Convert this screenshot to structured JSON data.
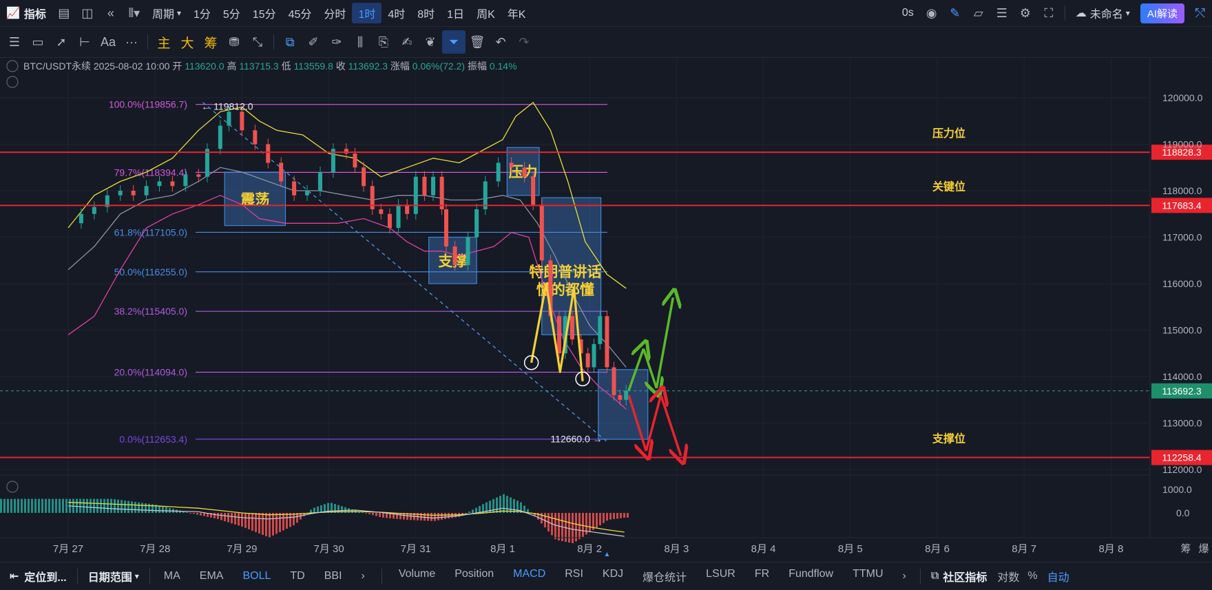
{
  "topbar": {
    "indicator_label": "指标",
    "period_label": "周期",
    "intervals": [
      "1分",
      "5分",
      "15分",
      "45分",
      "分时",
      "1时",
      "4时",
      "8时",
      "1日",
      "周K",
      "年K"
    ],
    "active_interval": "1时",
    "countdown": "0s",
    "layout_name": "未命名",
    "ai_button": "AI解读"
  },
  "toolbar": {
    "main_label": "主",
    "big_label": "大",
    "chip_label": "筹",
    "text_tool": "Aa",
    "more": "···"
  },
  "legend": {
    "symbol": "BTC/USDT永续",
    "datetime": "2025-08-02 10:00",
    "open_label": "开",
    "open": "113620.0",
    "high_label": "高",
    "high": "113715.3",
    "low_label": "低",
    "low": "113559.8",
    "close_label": "收",
    "close": "113692.3",
    "change_label": "涨幅",
    "change": "0.06%(72.2)",
    "amp_label": "振幅",
    "amp": "0.14%"
  },
  "chart_data": {
    "type": "candlestick",
    "x_labels": [
      "7月 27",
      "7月 28",
      "7月 29",
      "7月 30",
      "7月 31",
      "8月 1",
      "8月 2",
      "8月 3",
      "8月 4",
      "8月 5",
      "8月 6",
      "8月 7",
      "8月 8"
    ],
    "y_ticks": [
      120000,
      119000,
      118000,
      117000,
      116000,
      115000,
      114000,
      113000,
      112000
    ],
    "y_range": [
      111800,
      120350
    ],
    "fib_levels": [
      {
        "label": "100.0%(119856.7)",
        "value": 119856.7,
        "color": "#d05ad8"
      },
      {
        "label": "79.7%(118394.4)",
        "value": 118394.4,
        "color": "#d05ad8"
      },
      {
        "label": "61.8%(117105.0)",
        "value": 117105.0,
        "color": "#4c8ce6"
      },
      {
        "label": "50.0%(116255.0)",
        "value": 116255.0,
        "color": "#4c8ce6"
      },
      {
        "label": "38.2%(115405.0)",
        "value": 115405.0,
        "color": "#b05ae0"
      },
      {
        "label": "20.0%(114094.0)",
        "value": 114094.0,
        "color": "#b05ae0"
      },
      {
        "label": "0.0%(112653.4)",
        "value": 112653.4,
        "color": "#7b48e0"
      }
    ],
    "horizontal_lines": [
      {
        "value": 118828.3,
        "label": "118828.3",
        "annotation": "压力位"
      },
      {
        "value": 117683.4,
        "label": "117683.4",
        "annotation": "关键位"
      },
      {
        "value": 112258.4,
        "label": "112258.4",
        "annotation": "支撑位"
      }
    ],
    "current_price": {
      "value": 113692.3,
      "label": "113692.3"
    },
    "high_marker": {
      "text": "← 119812.0",
      "value": 119812.0
    },
    "low_marker": {
      "text": "112660.0 →",
      "value": 112660.0
    },
    "boxes": [
      {
        "label": "震荡",
        "x0": 1.8,
        "x1": 2.5,
        "y0": 118400,
        "y1": 117250
      },
      {
        "label": "支撑",
        "x0": 4.15,
        "x1": 4.7,
        "y0": 117000,
        "y1": 116000
      },
      {
        "label": "压力",
        "x0": 5.05,
        "x1": 5.42,
        "y0": 118930,
        "y1": 117900
      },
      {
        "label": "",
        "x0": 5.45,
        "x1": 6.13,
        "y0": 117850,
        "y1": 114900
      },
      {
        "label": "",
        "x0": 6.1,
        "x1": 6.67,
        "y0": 114150,
        "y1": 112650
      }
    ],
    "annotation_text": [
      "特朗普讲话",
      "懂的都懂"
    ],
    "ma": [
      [
        0.0,
        116300
      ],
      [
        0.3,
        116800
      ],
      [
        0.6,
        117500
      ],
      [
        0.9,
        117800
      ],
      [
        1.2,
        117900
      ],
      [
        1.5,
        118200
      ],
      [
        1.75,
        118500
      ],
      [
        2.0,
        118400
      ],
      [
        2.3,
        118200
      ],
      [
        2.6,
        118000
      ],
      [
        2.9,
        118000
      ],
      [
        3.2,
        117900
      ],
      [
        3.5,
        117800
      ],
      [
        3.8,
        117900
      ],
      [
        4.1,
        117900
      ],
      [
        4.4,
        117800
      ],
      [
        4.7,
        117800
      ],
      [
        5.0,
        117900
      ],
      [
        5.2,
        117800
      ],
      [
        5.4,
        117300
      ],
      [
        5.6,
        116600
      ],
      [
        5.8,
        115800
      ],
      [
        6.0,
        115100
      ],
      [
        6.2,
        114700
      ],
      [
        6.42,
        114200
      ]
    ],
    "boll_upper": [
      [
        0.0,
        117200
      ],
      [
        0.3,
        117900
      ],
      [
        0.6,
        118200
      ],
      [
        0.9,
        118400
      ],
      [
        1.2,
        118700
      ],
      [
        1.5,
        119300
      ],
      [
        1.75,
        119700
      ],
      [
        2.0,
        119800
      ],
      [
        2.2,
        119500
      ],
      [
        2.4,
        119300
      ],
      [
        2.7,
        119200
      ],
      [
        3.0,
        118800
      ],
      [
        3.3,
        118700
      ],
      [
        3.6,
        118300
      ],
      [
        3.9,
        118500
      ],
      [
        4.2,
        118700
      ],
      [
        4.5,
        118600
      ],
      [
        4.7,
        118800
      ],
      [
        5.0,
        119100
      ],
      [
        5.15,
        119600
      ],
      [
        5.35,
        119900
      ],
      [
        5.55,
        119300
      ],
      [
        5.75,
        118200
      ],
      [
        5.95,
        116900
      ],
      [
        6.2,
        116200
      ],
      [
        6.42,
        115900
      ]
    ],
    "boll_lower": [
      [
        0.0,
        114900
      ],
      [
        0.3,
        115300
      ],
      [
        0.6,
        116300
      ],
      [
        0.9,
        117200
      ],
      [
        1.2,
        117500
      ],
      [
        1.5,
        117700
      ],
      [
        1.75,
        117900
      ],
      [
        2.0,
        117700
      ],
      [
        2.2,
        117400
      ],
      [
        2.5,
        117300
      ],
      [
        2.8,
        117300
      ],
      [
        3.1,
        117300
      ],
      [
        3.4,
        117400
      ],
      [
        3.7,
        117200
      ],
      [
        3.9,
        116900
      ],
      [
        4.1,
        116700
      ],
      [
        4.3,
        116700
      ],
      [
        4.5,
        116600
      ],
      [
        4.7,
        116700
      ],
      [
        4.9,
        116800
      ],
      [
        5.1,
        117100
      ],
      [
        5.3,
        117000
      ],
      [
        5.5,
        115800
      ],
      [
        5.7,
        114800
      ],
      [
        5.9,
        114200
      ],
      [
        6.1,
        113800
      ],
      [
        6.3,
        113500
      ],
      [
        6.42,
        113300
      ]
    ],
    "candles_close": [
      [
        0.0,
        117300
      ],
      [
        0.15,
        117500
      ],
      [
        0.3,
        117650
      ],
      [
        0.45,
        117900
      ],
      [
        0.6,
        118000
      ],
      [
        0.75,
        117900
      ],
      [
        0.9,
        118100
      ],
      [
        1.05,
        118200
      ],
      [
        1.2,
        118100
      ],
      [
        1.35,
        118350
      ],
      [
        1.5,
        118300
      ],
      [
        1.6,
        118900
      ],
      [
        1.75,
        119400
      ],
      [
        1.85,
        119700
      ],
      [
        2.0,
        119300
      ],
      [
        2.15,
        119000
      ],
      [
        2.3,
        118600
      ],
      [
        2.45,
        118200
      ],
      [
        2.6,
        117900
      ],
      [
        2.75,
        118000
      ],
      [
        2.9,
        118400
      ],
      [
        3.05,
        118900
      ],
      [
        3.2,
        118800
      ],
      [
        3.3,
        118500
      ],
      [
        3.4,
        118100
      ],
      [
        3.5,
        117600
      ],
      [
        3.6,
        117500
      ],
      [
        3.7,
        117200
      ],
      [
        3.8,
        117700
      ],
      [
        3.9,
        117500
      ],
      [
        4.0,
        118300
      ],
      [
        4.1,
        117900
      ],
      [
        4.2,
        118300
      ],
      [
        4.3,
        117600
      ],
      [
        4.35,
        116800
      ],
      [
        4.45,
        116400
      ],
      [
        4.6,
        117000
      ],
      [
        4.7,
        117600
      ],
      [
        4.8,
        118200
      ],
      [
        4.95,
        118600
      ],
      [
        5.1,
        118500
      ],
      [
        5.25,
        118300
      ],
      [
        5.35,
        117700
      ],
      [
        5.45,
        116500
      ],
      [
        5.55,
        115300
      ],
      [
        5.65,
        114500
      ],
      [
        5.72,
        115300
      ],
      [
        5.8,
        114800
      ],
      [
        5.9,
        114500
      ],
      [
        5.98,
        114200
      ],
      [
        6.05,
        114700
      ],
      [
        6.12,
        115300
      ],
      [
        6.2,
        114200
      ],
      [
        6.28,
        113600
      ],
      [
        6.35,
        113500
      ],
      [
        6.42,
        113700
      ]
    ],
    "macd": {
      "type": "histogram",
      "y_ticks": [
        1000.0,
        0.0
      ],
      "x": [
        0.0,
        0.5,
        1.0,
        1.5,
        1.7,
        2.0,
        2.3,
        2.6,
        2.8,
        3.0,
        3.3,
        3.6,
        3.9,
        4.2,
        4.5,
        4.8,
        5.0,
        5.2,
        5.4,
        5.6,
        5.8,
        6.0,
        6.2,
        6.4
      ],
      "hist": [
        600,
        600,
        350,
        -100,
        -250,
        -600,
        -1050,
        -500,
        200,
        450,
        100,
        -200,
        -300,
        -350,
        -150,
        450,
        800,
        450,
        -300,
        -1150,
        -1300,
        -800,
        -300,
        -200
      ],
      "dif": [
        300,
        180,
        100,
        50,
        -80,
        -200,
        -260,
        -180,
        -30,
        80,
        120,
        20,
        -120,
        -220,
        -120,
        60,
        200,
        100,
        -180,
        -520,
        -700,
        -800,
        -900,
        -1000
      ],
      "dea": [
        450,
        380,
        300,
        200,
        120,
        0,
        -80,
        -60,
        0,
        40,
        60,
        30,
        -40,
        -100,
        -80,
        0,
        80,
        60,
        -50,
        -250,
        -450,
        -600,
        -720,
        -820
      ]
    }
  },
  "bottombar": {
    "locate": "定位到...",
    "date_range": "日期范围",
    "main_indicators": [
      "MA",
      "EMA",
      "BOLL",
      "TD",
      "BBI"
    ],
    "active_main": "BOLL",
    "sub_indicators": [
      "Volume",
      "Position",
      "MACD",
      "RSI",
      "KDJ",
      "爆仓统计",
      "LSUR",
      "FR",
      "Fundflow",
      "TTMU"
    ],
    "active_sub": "MACD",
    "community": "社区指标",
    "log_scale": "对数",
    "percent": "%",
    "auto": "自动",
    "right_labels": [
      "筹",
      "爆"
    ]
  },
  "colors": {
    "background": "#161a25",
    "up": "#26a69a",
    "down": "#ef5350",
    "red_line": "#e8242e",
    "ma": "#8a93a6",
    "boll_upper": "#e8e03a",
    "boll_lower": "#e040a0",
    "annotation_yellow": "#f5d033",
    "accent": "#4c9bff"
  }
}
